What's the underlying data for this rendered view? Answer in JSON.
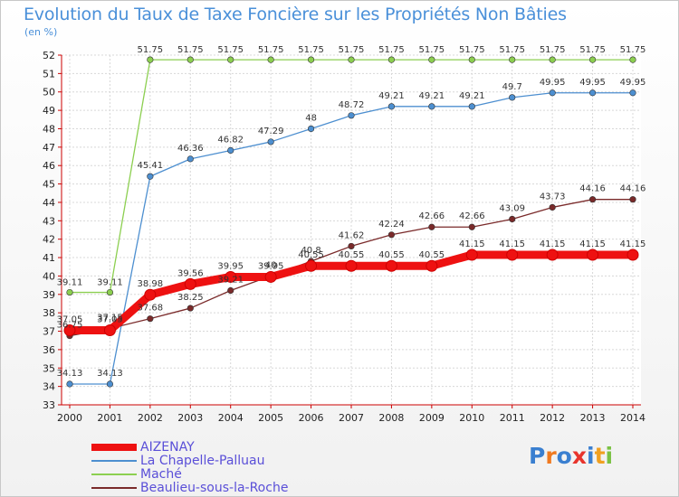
{
  "title": "Evolution du Taux de Taxe Foncière sur les Propriétés Non Bâties",
  "unit": "(en %)",
  "logo": {
    "letters": [
      "P",
      "r",
      "o",
      "x",
      "i",
      "t",
      "i"
    ],
    "colors": [
      "#3a7fd0",
      "#f07a20",
      "#3a7fd0",
      "#e8342c",
      "#3a7fd0",
      "#f0a020",
      "#7ac143"
    ]
  },
  "chart_data": {
    "type": "line",
    "title": "Evolution du Taux de Taxe Foncière sur les Propriétés Non Bâties",
    "ylabel": "(en %)",
    "xlabel": "",
    "x": [
      "2000",
      "2001",
      "2002",
      "2003",
      "2004",
      "2005",
      "2006",
      "2007",
      "2008",
      "2009",
      "2010",
      "2011",
      "2012",
      "2013",
      "2014"
    ],
    "ylim": [
      33,
      52
    ],
    "yticks": [
      33,
      34,
      35,
      36,
      37,
      38,
      39,
      40,
      41,
      42,
      43,
      44,
      45,
      46,
      47,
      48,
      49,
      50,
      51,
      52
    ],
    "grid": true,
    "legend": "bottom-left",
    "series": [
      {
        "name": "AIZENAY",
        "color": "#ee1111",
        "values": [
          37.05,
          37.05,
          38.98,
          39.56,
          39.95,
          39.95,
          40.55,
          40.55,
          40.55,
          40.55,
          41.15,
          41.15,
          41.15,
          41.15,
          41.15
        ],
        "labels": [
          "37.05",
          "37.05",
          "38.98",
          "39.56",
          "39.95",
          "39.95",
          "40.55",
          "40.55",
          "40.55",
          "40.55",
          "41.15",
          "41.15",
          "41.15",
          "41.15",
          "41.15"
        ]
      },
      {
        "name": "La Chapelle-Palluau",
        "color": "#4d8fd0",
        "values": [
          34.13,
          34.13,
          45.41,
          46.36,
          46.82,
          47.29,
          48,
          48.72,
          49.21,
          49.21,
          49.21,
          49.7,
          49.95,
          49.95,
          49.95
        ],
        "labels": [
          "34.13",
          "34.13",
          "45.41",
          "46.36",
          "46.82",
          "47.29",
          "48",
          "48.72",
          "49.21",
          "49.21",
          "49.21",
          "49.7",
          "49.95",
          "49.95",
          "49.95"
        ]
      },
      {
        "name": "Maché",
        "color": "#8ccf50",
        "values": [
          39.11,
          39.11,
          51.75,
          51.75,
          51.75,
          51.75,
          51.75,
          51.75,
          51.75,
          51.75,
          51.75,
          51.75,
          51.75,
          51.75,
          51.75
        ],
        "labels": [
          "39.11",
          "39.11",
          "51.75",
          "51.75",
          "51.75",
          "51.75",
          "51.75",
          "51.75",
          "51.75",
          "51.75",
          "51.75",
          "51.75",
          "51.75",
          "51.75",
          "51.75"
        ]
      },
      {
        "name": "Beaulieu-sous-la-Roche",
        "color": "#7a2a2a",
        "values": [
          36.75,
          37.15,
          37.68,
          38.25,
          39.21,
          40,
          40.8,
          41.62,
          42.24,
          42.66,
          42.66,
          43.09,
          43.73,
          44.16,
          44.16
        ],
        "labels": [
          "36.75",
          "37.15",
          "37.68",
          "38.25",
          "39.21",
          "40",
          "40.8",
          "41.62",
          "42.24",
          "42.66",
          "42.66",
          "43.09",
          "43.73",
          "44.16",
          "44.16"
        ]
      }
    ]
  }
}
